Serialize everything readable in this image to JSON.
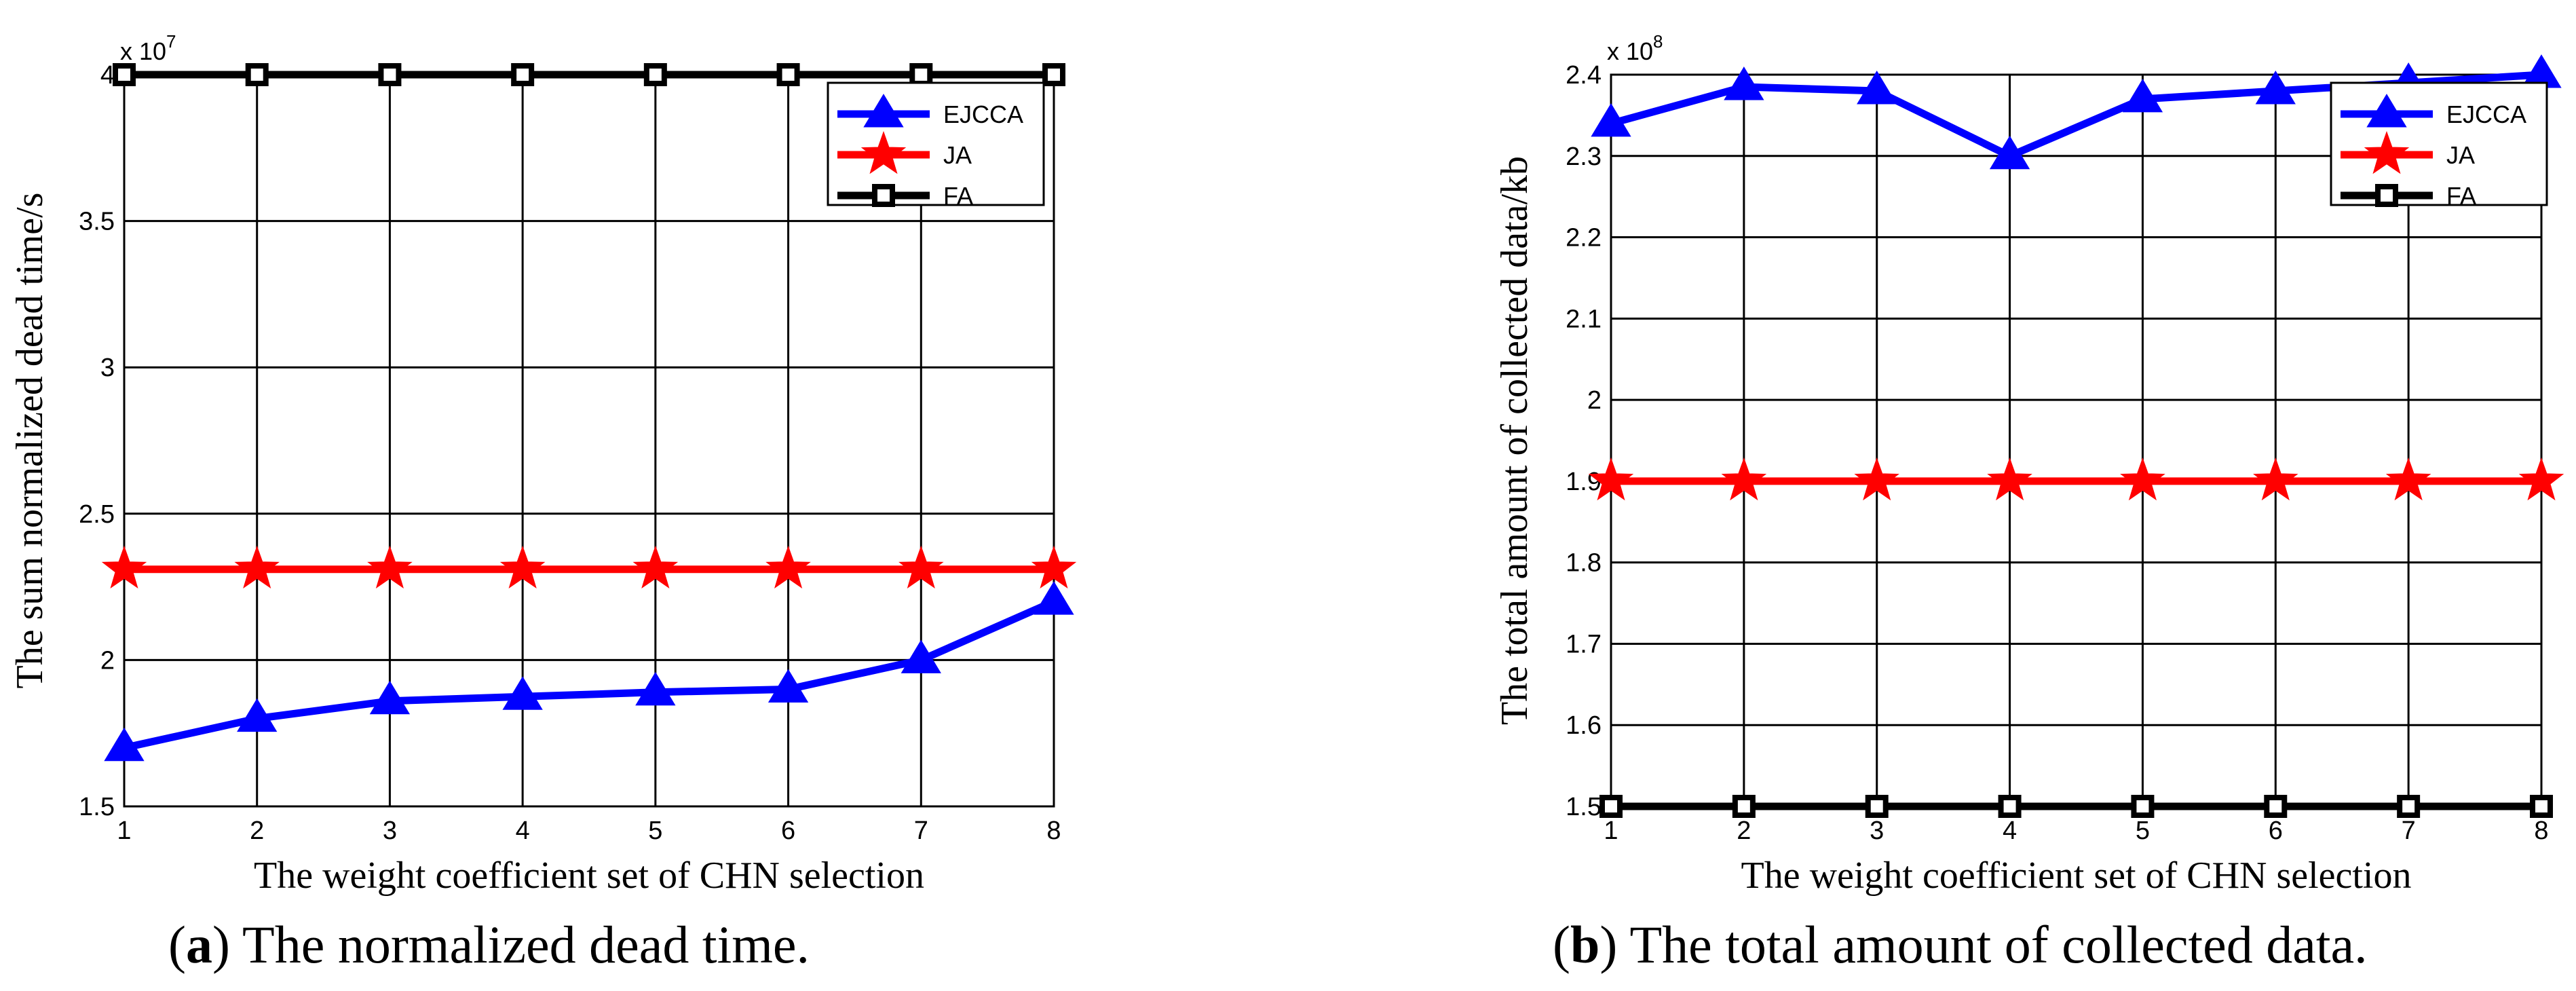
{
  "colors": {
    "EJCCA": "#0000ff",
    "JA": "#ff0000",
    "FA": "#000000",
    "grid": "#000000"
  },
  "chart_data": [
    {
      "type": "line",
      "caption_letter": "a",
      "caption_text": ") The normalized dead time.",
      "caption_open": "(",
      "xlabel": "The weight coefficient set of CHN selection",
      "ylabel": "The sum normalized dead time/s",
      "exponent_base": "x 10",
      "exponent_power": "7",
      "xlim": [
        1,
        8
      ],
      "ylim": [
        1.5,
        4
      ],
      "xticks": [
        1,
        2,
        3,
        4,
        5,
        6,
        7,
        8
      ],
      "yticks": [
        1.5,
        2,
        2.5,
        3,
        3.5,
        4
      ],
      "ytick_labels": [
        "1.5",
        "2",
        "2.5",
        "3",
        "3.5",
        "4"
      ],
      "x": [
        1,
        2,
        3,
        4,
        5,
        6,
        7,
        8
      ],
      "legend": [
        "EJCCA",
        "JA",
        "FA"
      ],
      "series": [
        {
          "name": "EJCCA",
          "marker": "triangle",
          "values": [
            1.7,
            1.8,
            1.86,
            1.875,
            1.89,
            1.9,
            2.0,
            2.2
          ]
        },
        {
          "name": "JA",
          "marker": "star",
          "values": [
            2.31,
            2.31,
            2.31,
            2.31,
            2.31,
            2.31,
            2.31,
            2.31
          ]
        },
        {
          "name": "FA",
          "marker": "square",
          "values": [
            4.0,
            4.0,
            4.0,
            4.0,
            4.0,
            4.0,
            4.0,
            4.0
          ]
        }
      ]
    },
    {
      "type": "line",
      "caption_letter": "b",
      "caption_text": ") The total amount of collected data.",
      "caption_open": "(",
      "xlabel": "The weight coefficient set of CHN selection",
      "ylabel": "The total amount of collected data/kb",
      "exponent_base": "x 10",
      "exponent_power": "8",
      "xlim": [
        1,
        8
      ],
      "ylim": [
        1.5,
        2.4
      ],
      "xticks": [
        1,
        2,
        3,
        4,
        5,
        6,
        7,
        8
      ],
      "yticks": [
        1.5,
        1.6,
        1.7,
        1.8,
        1.9,
        2.0,
        2.1,
        2.2,
        2.3,
        2.4
      ],
      "ytick_labels": [
        "1.5",
        "1.6",
        "1.7",
        "1.8",
        "1.9",
        "2",
        "2.1",
        "2.2",
        "2.3",
        "2.4"
      ],
      "x": [
        1,
        2,
        3,
        4,
        5,
        6,
        7,
        8
      ],
      "legend": [
        "EJCCA",
        "JA",
        "FA"
      ],
      "series": [
        {
          "name": "EJCCA",
          "marker": "triangle",
          "values": [
            2.34,
            2.385,
            2.38,
            2.3,
            2.37,
            2.38,
            2.39,
            2.4
          ]
        },
        {
          "name": "JA",
          "marker": "star",
          "values": [
            1.9,
            1.9,
            1.9,
            1.9,
            1.9,
            1.9,
            1.9,
            1.9
          ]
        },
        {
          "name": "FA",
          "marker": "square",
          "values": [
            1.5,
            1.5,
            1.5,
            1.5,
            1.5,
            1.5,
            1.5,
            1.5
          ]
        }
      ]
    }
  ]
}
